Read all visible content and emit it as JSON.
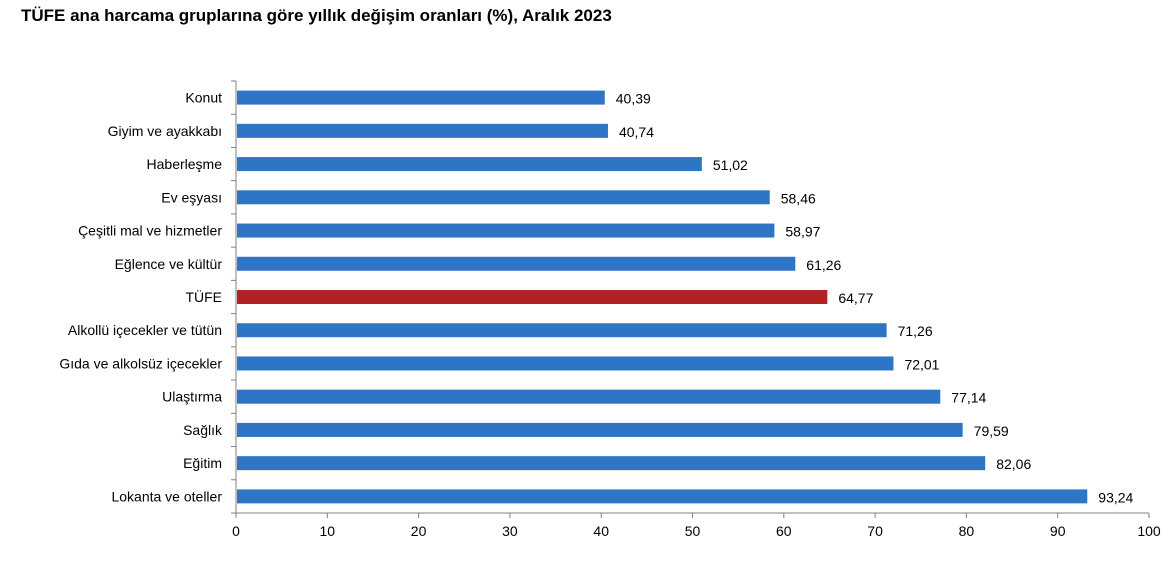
{
  "title": "TÜFE ana harcama gruplarına göre yıllık değişim oranları (%), Aralık 2023",
  "colors": {
    "bar": "#2E75C6",
    "highlight": "#B22222",
    "axis": "#808080"
  },
  "chart_data": {
    "type": "bar",
    "orientation": "horizontal",
    "categories": [
      "Konut",
      "Giyim ve ayakkabı",
      "Haberleşme",
      "Ev eşyası",
      "Çeşitli mal ve hizmetler",
      "Eğlence ve kültür",
      "TÜFE",
      "Alkollü içecekler ve tütün",
      "Gıda ve alkolsüz içecekler",
      "Ulaştırma",
      "Sağlık",
      "Eğitim",
      "Lokanta ve oteller"
    ],
    "values": [
      40.39,
      40.74,
      51.02,
      58.46,
      58.97,
      61.26,
      64.77,
      71.26,
      72.01,
      77.14,
      79.59,
      82.06,
      93.24
    ],
    "value_labels": [
      "40,39",
      "40,74",
      "51,02",
      "58,46",
      "58,97",
      "61,26",
      "64,77",
      "71,26",
      "72,01",
      "77,14",
      "79,59",
      "82,06",
      "93,24"
    ],
    "highlight_category": "TÜFE",
    "xlim": [
      0,
      100
    ],
    "xticks": [
      0,
      10,
      20,
      30,
      40,
      50,
      60,
      70,
      80,
      90,
      100
    ],
    "xlabel": "",
    "ylabel": "",
    "grid": false,
    "legend": "none"
  }
}
